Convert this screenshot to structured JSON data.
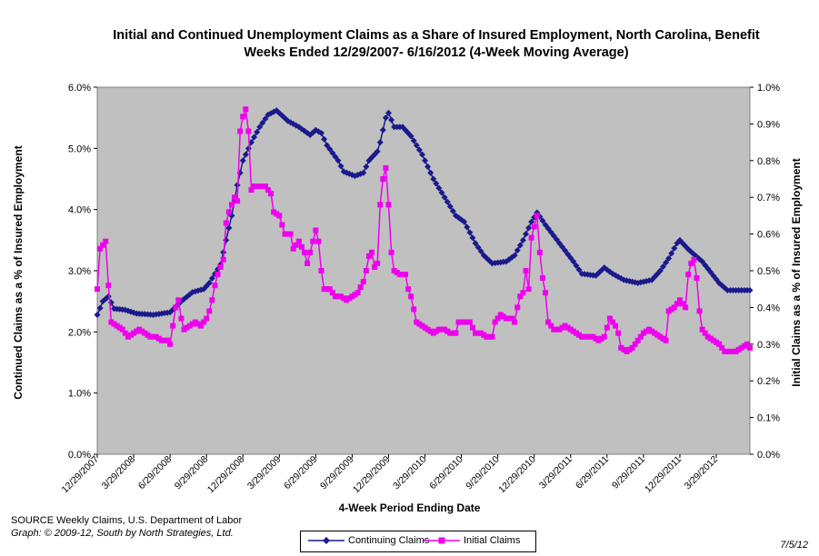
{
  "chart_data": {
    "type": "line",
    "title": "Initial and Continued Unemployment Claims as a Share of Insured Employment, North Carolina, Benefit Weeks Ended 12/29/2007- 6/16/2012 (4-Week Moving Average)",
    "xlabel": "4-Week Period Ending Date",
    "ylabel_left": "Continued Claims as a % of Insured Employment",
    "ylabel_right": "Initial Claims as a % of Insured Employment",
    "ylim_left": [
      0,
      6
    ],
    "ylim_right": [
      0,
      1
    ],
    "yticks_left": [
      "0.0%",
      "1.0%",
      "2.0%",
      "3.0%",
      "4.0%",
      "5.0%",
      "6.0%"
    ],
    "yticks_right": [
      "0.0%",
      "0.1%",
      "0.2%",
      "0.3%",
      "0.4%",
      "0.5%",
      "0.6%",
      "0.7%",
      "0.8%",
      "0.9%",
      "1.0%"
    ],
    "x_start": "12/29/2007",
    "week_count": 234,
    "xticks": [
      {
        "label": "12/29/2007",
        "week": 0
      },
      {
        "label": "3/29/2008",
        "week": 13
      },
      {
        "label": "6/29/2008",
        "week": 26
      },
      {
        "label": "9/29/2008",
        "week": 39
      },
      {
        "label": "12/29/2008",
        "week": 52
      },
      {
        "label": "3/29/2009",
        "week": 65
      },
      {
        "label": "6/29/2009",
        "week": 78
      },
      {
        "label": "9/29/2009",
        "week": 91
      },
      {
        "label": "12/29/2009",
        "week": 104
      },
      {
        "label": "3/29/2010",
        "week": 117
      },
      {
        "label": "6/29/2010",
        "week": 130
      },
      {
        "label": "9/29/2010",
        "week": 143
      },
      {
        "label": "12/29/2010",
        "week": 156
      },
      {
        "label": "3/29/2011",
        "week": 169
      },
      {
        "label": "6/29/2011",
        "week": 182
      },
      {
        "label": "9/29/2011",
        "week": 195
      },
      {
        "label": "12/29/2011",
        "week": 208
      },
      {
        "label": "3/29/2012",
        "week": 221
      }
    ],
    "grid": false,
    "legend_position": "bottom",
    "series": [
      {
        "name": "Continuing Claims",
        "axis": "left",
        "color": "#1a1a8c",
        "marker": "diamond",
        "points": [
          [
            0,
            2.28
          ],
          [
            2,
            2.5
          ],
          [
            4,
            2.58
          ],
          [
            6,
            2.38
          ],
          [
            10,
            2.36
          ],
          [
            14,
            2.3
          ],
          [
            20,
            2.28
          ],
          [
            26,
            2.32
          ],
          [
            30,
            2.5
          ],
          [
            34,
            2.65
          ],
          [
            38,
            2.7
          ],
          [
            40,
            2.8
          ],
          [
            44,
            3.1
          ],
          [
            46,
            3.5
          ],
          [
            48,
            3.9
          ],
          [
            50,
            4.4
          ],
          [
            52,
            4.8
          ],
          [
            55,
            5.1
          ],
          [
            58,
            5.35
          ],
          [
            61,
            5.55
          ],
          [
            64,
            5.62
          ],
          [
            68,
            5.45
          ],
          [
            72,
            5.35
          ],
          [
            76,
            5.22
          ],
          [
            78,
            5.3
          ],
          [
            80,
            5.25
          ],
          [
            82,
            5.05
          ],
          [
            86,
            4.8
          ],
          [
            88,
            4.62
          ],
          [
            92,
            4.55
          ],
          [
            95,
            4.6
          ],
          [
            97,
            4.8
          ],
          [
            100,
            4.95
          ],
          [
            101,
            5.1
          ],
          [
            103,
            5.5
          ],
          [
            104,
            5.58
          ],
          [
            106,
            5.35
          ],
          [
            109,
            5.35
          ],
          [
            112,
            5.2
          ],
          [
            116,
            4.9
          ],
          [
            120,
            4.5
          ],
          [
            124,
            4.2
          ],
          [
            128,
            3.9
          ],
          [
            131,
            3.8
          ],
          [
            135,
            3.45
          ],
          [
            138,
            3.25
          ],
          [
            141,
            3.12
          ],
          [
            146,
            3.15
          ],
          [
            149,
            3.25
          ],
          [
            152,
            3.5
          ],
          [
            155,
            3.8
          ],
          [
            157,
            3.95
          ],
          [
            160,
            3.75
          ],
          [
            165,
            3.45
          ],
          [
            170,
            3.15
          ],
          [
            173,
            2.95
          ],
          [
            178,
            2.92
          ],
          [
            181,
            3.05
          ],
          [
            184,
            2.95
          ],
          [
            188,
            2.85
          ],
          [
            193,
            2.8
          ],
          [
            198,
            2.85
          ],
          [
            201,
            3.0
          ],
          [
            204,
            3.2
          ],
          [
            207,
            3.45
          ],
          [
            208,
            3.5
          ],
          [
            211,
            3.35
          ],
          [
            216,
            3.15
          ],
          [
            222,
            2.8
          ],
          [
            225,
            2.68
          ],
          [
            229,
            2.68
          ],
          [
            233,
            2.68
          ]
        ]
      },
      {
        "name": "Initial Claims",
        "axis": "right",
        "color": "#ee00ee",
        "marker": "square",
        "points": [
          [
            0,
            0.45
          ],
          [
            1,
            0.56
          ],
          [
            2,
            0.57
          ],
          [
            3,
            0.58
          ],
          [
            4,
            0.46
          ],
          [
            5,
            0.36
          ],
          [
            7,
            0.35
          ],
          [
            9,
            0.34
          ],
          [
            11,
            0.32
          ],
          [
            13,
            0.33
          ],
          [
            15,
            0.34
          ],
          [
            17,
            0.33
          ],
          [
            19,
            0.32
          ],
          [
            21,
            0.32
          ],
          [
            23,
            0.31
          ],
          [
            25,
            0.31
          ],
          [
            26,
            0.3
          ],
          [
            28,
            0.4
          ],
          [
            29,
            0.42
          ],
          [
            30,
            0.37
          ],
          [
            31,
            0.34
          ],
          [
            33,
            0.35
          ],
          [
            35,
            0.36
          ],
          [
            37,
            0.35
          ],
          [
            39,
            0.37
          ],
          [
            40,
            0.39
          ],
          [
            41,
            0.42
          ],
          [
            42,
            0.46
          ],
          [
            43,
            0.49
          ],
          [
            44,
            0.51
          ],
          [
            45,
            0.53
          ],
          [
            46,
            0.63
          ],
          [
            47,
            0.66
          ],
          [
            48,
            0.68
          ],
          [
            49,
            0.7
          ],
          [
            50,
            0.69
          ],
          [
            51,
            0.88
          ],
          [
            52,
            0.92
          ],
          [
            53,
            0.94
          ],
          [
            54,
            0.88
          ],
          [
            55,
            0.72
          ],
          [
            56,
            0.73
          ],
          [
            58,
            0.73
          ],
          [
            60,
            0.73
          ],
          [
            62,
            0.71
          ],
          [
            63,
            0.66
          ],
          [
            65,
            0.65
          ],
          [
            67,
            0.6
          ],
          [
            69,
            0.6
          ],
          [
            70,
            0.56
          ],
          [
            72,
            0.58
          ],
          [
            74,
            0.55
          ],
          [
            75,
            0.52
          ],
          [
            77,
            0.58
          ],
          [
            78,
            0.61
          ],
          [
            79,
            0.58
          ],
          [
            80,
            0.5
          ],
          [
            81,
            0.45
          ],
          [
            83,
            0.45
          ],
          [
            85,
            0.43
          ],
          [
            87,
            0.43
          ],
          [
            89,
            0.42
          ],
          [
            91,
            0.43
          ],
          [
            93,
            0.44
          ],
          [
            95,
            0.47
          ],
          [
            96,
            0.5
          ],
          [
            97,
            0.54
          ],
          [
            98,
            0.55
          ],
          [
            99,
            0.51
          ],
          [
            100,
            0.52
          ],
          [
            101,
            0.68
          ],
          [
            102,
            0.75
          ],
          [
            103,
            0.78
          ],
          [
            104,
            0.68
          ],
          [
            105,
            0.55
          ],
          [
            106,
            0.5
          ],
          [
            108,
            0.49
          ],
          [
            110,
            0.49
          ],
          [
            111,
            0.45
          ],
          [
            112,
            0.43
          ],
          [
            114,
            0.36
          ],
          [
            116,
            0.35
          ],
          [
            118,
            0.34
          ],
          [
            120,
            0.33
          ],
          [
            122,
            0.34
          ],
          [
            124,
            0.34
          ],
          [
            126,
            0.33
          ],
          [
            128,
            0.33
          ],
          [
            129,
            0.36
          ],
          [
            131,
            0.36
          ],
          [
            133,
            0.36
          ],
          [
            135,
            0.33
          ],
          [
            137,
            0.33
          ],
          [
            139,
            0.32
          ],
          [
            141,
            0.32
          ],
          [
            142,
            0.36
          ],
          [
            144,
            0.38
          ],
          [
            146,
            0.37
          ],
          [
            148,
            0.37
          ],
          [
            149,
            0.36
          ],
          [
            150,
            0.4
          ],
          [
            151,
            0.43
          ],
          [
            152,
            0.44
          ],
          [
            153,
            0.5
          ],
          [
            154,
            0.45
          ],
          [
            155,
            0.59
          ],
          [
            156,
            0.62
          ],
          [
            157,
            0.65
          ],
          [
            158,
            0.55
          ],
          [
            159,
            0.48
          ],
          [
            160,
            0.44
          ],
          [
            161,
            0.36
          ],
          [
            163,
            0.34
          ],
          [
            165,
            0.34
          ],
          [
            167,
            0.35
          ],
          [
            169,
            0.34
          ],
          [
            171,
            0.33
          ],
          [
            173,
            0.32
          ],
          [
            175,
            0.32
          ],
          [
            177,
            0.32
          ],
          [
            179,
            0.31
          ],
          [
            181,
            0.32
          ],
          [
            183,
            0.37
          ],
          [
            185,
            0.35
          ],
          [
            186,
            0.33
          ],
          [
            187,
            0.29
          ],
          [
            189,
            0.28
          ],
          [
            191,
            0.29
          ],
          [
            193,
            0.31
          ],
          [
            195,
            0.33
          ],
          [
            197,
            0.34
          ],
          [
            199,
            0.33
          ],
          [
            201,
            0.32
          ],
          [
            203,
            0.31
          ],
          [
            204,
            0.39
          ],
          [
            206,
            0.4
          ],
          [
            208,
            0.42
          ],
          [
            210,
            0.4
          ],
          [
            211,
            0.49
          ],
          [
            212,
            0.52
          ],
          [
            213,
            0.53
          ],
          [
            214,
            0.48
          ],
          [
            215,
            0.39
          ],
          [
            216,
            0.34
          ],
          [
            218,
            0.32
          ],
          [
            220,
            0.31
          ],
          [
            222,
            0.3
          ],
          [
            224,
            0.28
          ],
          [
            226,
            0.28
          ],
          [
            228,
            0.28
          ],
          [
            230,
            0.29
          ],
          [
            232,
            0.3
          ],
          [
            233,
            0.29
          ]
        ]
      }
    ]
  },
  "footer": {
    "source": "SOURCE  Weekly Claims, U.S. Department of Labor",
    "credit": "Graph: © 2009-12, South by North Strategies, Ltd.",
    "date": "7/5/12"
  }
}
